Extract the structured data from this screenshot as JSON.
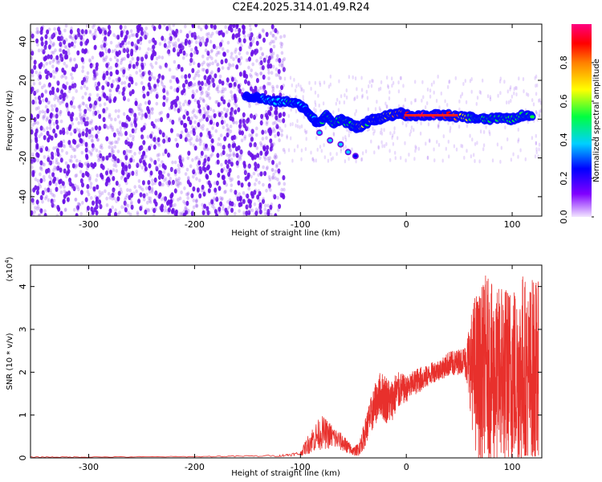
{
  "title": "C2E4.2025.314.01.49.R24",
  "colors": {
    "snr_line": "#e8302c",
    "scatter_noise": "#9b5cf0",
    "scatter_strong": "#6a10e8",
    "axis": "#000000"
  },
  "chart_data": [
    {
      "type": "scatter",
      "subtype": "spectrogram",
      "xlabel": "Height of straight line (km)",
      "ylabel": "Frequency (Hz)",
      "xlim": [
        -355,
        128
      ],
      "ylim": [
        -50,
        49
      ],
      "xticks": [
        -300,
        -200,
        -100,
        0,
        100
      ],
      "yticks": [
        -40,
        -20,
        0,
        20,
        40
      ],
      "grid": false,
      "colorbar": {
        "label": "Normalized spectral amplitude",
        "range": [
          0,
          1
        ],
        "ticks": [
          "0.0",
          "0.2",
          "0.4",
          "0.6",
          "0.8"
        ],
        "colormap": [
          "#f2e6ff",
          "#8000ff",
          "#0000ff",
          "#00d0ff",
          "#00ff40",
          "#ffff00",
          "#ff8000",
          "#ff0000",
          "#ff0080"
        ]
      },
      "ridge": [
        {
          "x": -152,
          "y": 12,
          "a": 0.3
        },
        {
          "x": -140,
          "y": 11,
          "a": 0.3
        },
        {
          "x": -125,
          "y": 9,
          "a": 0.35
        },
        {
          "x": -110,
          "y": 9,
          "a": 0.45
        },
        {
          "x": -100,
          "y": 7,
          "a": 0.4
        },
        {
          "x": -95,
          "y": 5,
          "a": 0.4
        },
        {
          "x": -90,
          "y": 2,
          "a": 0.45
        },
        {
          "x": -85,
          "y": -2,
          "a": 0.4
        },
        {
          "x": -80,
          "y": -1,
          "a": 0.45
        },
        {
          "x": -75,
          "y": 2,
          "a": 0.5
        },
        {
          "x": -70,
          "y": -2,
          "a": 0.45
        },
        {
          "x": -62,
          "y": 0,
          "a": 0.45
        },
        {
          "x": -55,
          "y": -2,
          "a": 0.5
        },
        {
          "x": -48,
          "y": -4,
          "a": 0.55
        },
        {
          "x": -44,
          "y": -4,
          "a": 0.6
        },
        {
          "x": -38,
          "y": -2,
          "a": 0.55
        },
        {
          "x": -32,
          "y": 0,
          "a": 0.6
        },
        {
          "x": -28,
          "y": 0,
          "a": 0.6
        },
        {
          "x": -24,
          "y": 0,
          "a": 0.6
        },
        {
          "x": -18,
          "y": 2,
          "a": 0.65
        },
        {
          "x": -12,
          "y": 2,
          "a": 0.7
        },
        {
          "x": -5,
          "y": 3,
          "a": 0.75
        },
        {
          "x": 0,
          "y": 2,
          "a": 0.9
        },
        {
          "x": 10,
          "y": 2,
          "a": 0.95
        },
        {
          "x": 20,
          "y": 2,
          "a": 0.95
        },
        {
          "x": 30,
          "y": 2,
          "a": 0.95
        },
        {
          "x": 40,
          "y": 2,
          "a": 0.9
        },
        {
          "x": 50,
          "y": 1,
          "a": 0.7
        },
        {
          "x": 60,
          "y": 1,
          "a": 0.55
        },
        {
          "x": 70,
          "y": 0,
          "a": 0.5
        },
        {
          "x": 80,
          "y": 0,
          "a": 0.45
        },
        {
          "x": 90,
          "y": 1,
          "a": 0.45
        },
        {
          "x": 100,
          "y": 0,
          "a": 0.45
        },
        {
          "x": 110,
          "y": 2,
          "a": 0.45
        },
        {
          "x": 120,
          "y": 1,
          "a": 0.45
        }
      ],
      "branch": [
        {
          "x": -82,
          "y": -7,
          "a": 0.35
        },
        {
          "x": -72,
          "y": -11,
          "a": 0.35
        },
        {
          "x": -62,
          "y": -13,
          "a": 0.35
        },
        {
          "x": -55,
          "y": -17,
          "a": 0.4
        },
        {
          "x": -48,
          "y": -19,
          "a": 0.3
        }
      ],
      "noise_region": {
        "x_from": -355,
        "x_to": -115,
        "y_from": -50,
        "y_to": 49
      }
    },
    {
      "type": "line",
      "xlabel": "Height of straight line (km)",
      "ylabel": "SNR (10 * v/v)",
      "y_multiplier_label": "(x10",
      "y_multiplier_exp": "4",
      "y_multiplier_close": ")",
      "xlim": [
        -355,
        128
      ],
      "ylim": [
        0,
        4.5
      ],
      "xticks": [
        -300,
        -200,
        -100,
        0,
        100
      ],
      "yticks": [
        0,
        1,
        2,
        3,
        4
      ],
      "grid": false,
      "series": [
        {
          "x": [
            -355,
            -300,
            -200,
            -120,
            -100,
            -90,
            -80,
            -70,
            -60,
            -55,
            -50,
            -45,
            -40,
            -35,
            -30,
            -25,
            -20,
            -15,
            -10,
            -5,
            0,
            5,
            10,
            15,
            20,
            25,
            30,
            35,
            40,
            45,
            50,
            55,
            60,
            65,
            70,
            75,
            80,
            85,
            90,
            95,
            100,
            105,
            110,
            115,
            120,
            125
          ],
          "y": [
            0.02,
            0.02,
            0.03,
            0.05,
            0.1,
            0.4,
            0.6,
            0.5,
            0.35,
            0.25,
            0.15,
            0.2,
            0.5,
            0.9,
            1.2,
            1.5,
            1.4,
            1.3,
            1.5,
            1.6,
            1.6,
            1.7,
            1.8,
            1.85,
            1.9,
            2.0,
            2.05,
            2.1,
            2.2,
            2.2,
            2.25,
            2.3,
            2.2,
            2.0,
            1.9,
            2.2,
            2.0,
            1.8,
            2.1,
            1.9,
            2.0,
            1.9,
            2.1,
            1.8,
            2.0,
            1.9
          ],
          "noise_amp": [
            0.01,
            0.01,
            0.01,
            0.02,
            0.05,
            0.3,
            0.4,
            0.3,
            0.2,
            0.15,
            0.1,
            0.15,
            0.3,
            0.4,
            0.5,
            0.5,
            0.6,
            0.5,
            0.5,
            0.4,
            0.3,
            0.3,
            0.3,
            0.3,
            0.25,
            0.25,
            0.25,
            0.25,
            0.3,
            0.3,
            0.3,
            0.3,
            1.0,
            1.9,
            2.0,
            2.1,
            2.1,
            2.0,
            2.2,
            2.1,
            2.2,
            2.1,
            2.3,
            2.2,
            2.3,
            2.2
          ]
        }
      ]
    }
  ]
}
